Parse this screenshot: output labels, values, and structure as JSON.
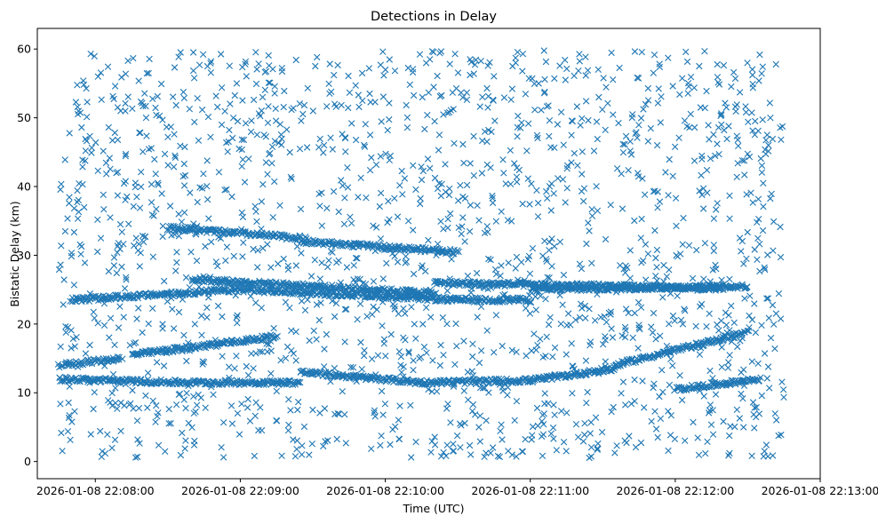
{
  "chart_data": {
    "type": "scatter",
    "title": "Detections in Delay",
    "xlabel": "Time (UTC)",
    "ylabel": "Bistatic Delay (km)",
    "marker": "x",
    "marker_color": "#1f77b4",
    "grid": false,
    "legend": "none",
    "xlim": [
      "2026-01-08 22:07:36",
      "2026-01-08 22:13:00"
    ],
    "ylim": [
      -2.5,
      63
    ],
    "x_ticks": [
      "2026-01-08 22:08:00",
      "2026-01-08 22:09:00",
      "2026-01-08 22:10:00",
      "2026-01-08 22:11:00",
      "2026-01-08 22:12:00",
      "2026-01-08 22:13:00"
    ],
    "y_ticks": [
      0,
      10,
      20,
      30,
      40,
      50,
      60
    ],
    "data_start": "2026-01-08 22:07:45",
    "data_end": "2026-01-08 22:12:45",
    "tracks": [
      {
        "t": [
          "2026-01-08 22:07:45",
          "2026-01-08 22:08:10"
        ],
        "delay": [
          14.0,
          15.0
        ]
      },
      {
        "t": [
          "2026-01-08 22:08:15",
          "2026-01-08 22:09:15"
        ],
        "delay": [
          15.5,
          18.2
        ]
      },
      {
        "t": [
          "2026-01-08 22:07:45",
          "2026-01-08 22:08:35"
        ],
        "delay": [
          12.0,
          11.5
        ]
      },
      {
        "t": [
          "2026-01-08 22:08:35",
          "2026-01-08 22:09:25"
        ],
        "delay": [
          11.5,
          11.5
        ]
      },
      {
        "t": [
          "2026-01-08 22:09:25",
          "2026-01-08 22:10:15"
        ],
        "delay": [
          13.0,
          11.5
        ]
      },
      {
        "t": [
          "2026-01-08 22:10:15",
          "2026-01-08 22:11:00"
        ],
        "delay": [
          11.5,
          11.8
        ]
      },
      {
        "t": [
          "2026-01-08 22:11:00",
          "2026-01-08 22:11:35"
        ],
        "delay": [
          11.8,
          13.5
        ]
      },
      {
        "t": [
          "2026-01-08 22:11:35",
          "2026-01-08 22:12:30"
        ],
        "delay": [
          14.0,
          18.8
        ]
      },
      {
        "t": [
          "2026-01-08 22:12:00",
          "2026-01-08 22:12:35"
        ],
        "delay": [
          10.5,
          12.0
        ]
      },
      {
        "t": [
          "2026-01-08 22:07:50",
          "2026-01-08 22:09:00"
        ],
        "delay": [
          23.5,
          25.0
        ]
      },
      {
        "t": [
          "2026-01-08 22:09:00",
          "2026-01-08 22:10:30"
        ],
        "delay": [
          25.0,
          23.5
        ]
      },
      {
        "t": [
          "2026-01-08 22:10:30",
          "2026-01-08 22:11:00"
        ],
        "delay": [
          23.5,
          23.5
        ]
      },
      {
        "t": [
          "2026-01-08 22:11:00",
          "2026-01-08 22:12:30"
        ],
        "delay": [
          25.0,
          25.5
        ]
      },
      {
        "t": [
          "2026-01-08 22:08:40",
          "2026-01-08 22:10:20"
        ],
        "delay": [
          26.5,
          24.5
        ]
      },
      {
        "t": [
          "2026-01-08 22:10:20",
          "2026-01-08 22:12:20"
        ],
        "delay": [
          26.0,
          25.2
        ]
      },
      {
        "t": [
          "2026-01-08 22:08:30",
          "2026-01-08 22:09:25"
        ],
        "delay": [
          34.0,
          32.5
        ]
      },
      {
        "t": [
          "2026-01-08 22:09:25",
          "2026-01-08 22:10:30"
        ],
        "delay": [
          32.0,
          30.5
        ]
      }
    ]
  }
}
